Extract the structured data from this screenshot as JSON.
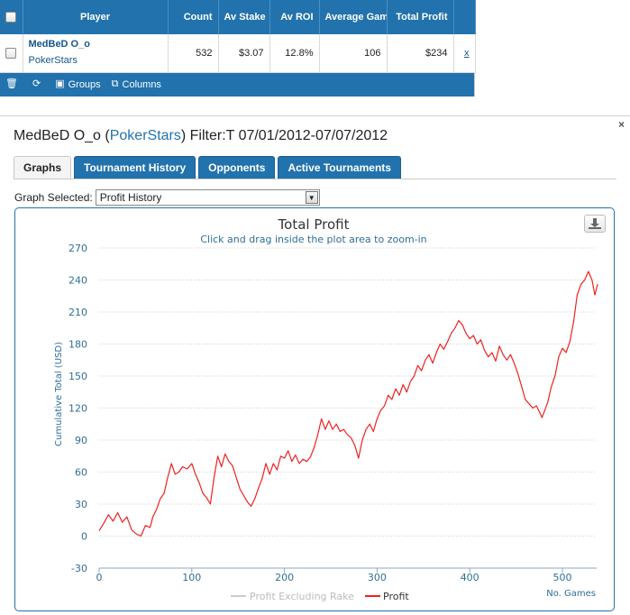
{
  "table": {
    "headers": {
      "player": "Player",
      "count": "Count",
      "av_stake": "Av Stake",
      "av_roi": "Av ROI",
      "avg_games": "Average Gam",
      "total_profit": "Total Profit"
    },
    "rows": [
      {
        "player": "MedBeD O_o",
        "site": "PokerStars",
        "count": "532",
        "av_stake": "$3.07",
        "av_roi": "12.8%",
        "avg_games": "106",
        "total_profit": "$234",
        "remove": "x"
      }
    ],
    "toolbar": {
      "groups": "Groups",
      "columns": "Columns"
    }
  },
  "panel": {
    "player": "MedBeD O_o",
    "paren_open": " (",
    "site": "PokerStars",
    "filter": ") Filter:T 07/01/2012-07/07/2012",
    "tabs": [
      "Graphs",
      "Tournament History",
      "Opponents",
      "Active Tournaments"
    ],
    "active_tab": "Graphs",
    "graph_selected_label": "Graph Selected:",
    "graph_selected_value": "Profit History"
  },
  "chart_data": {
    "type": "line",
    "title": "Total Profit",
    "subtitle": "Click and drag inside the plot area to zoom-in",
    "ylabel": "Cumulative Total (USD)",
    "xlabel": "No. Games",
    "ylim": [
      -30,
      270
    ],
    "xlim": [
      0,
      532
    ],
    "yticks": [
      270,
      240,
      210,
      180,
      150,
      120,
      90,
      60,
      30,
      0,
      -30
    ],
    "xticks": [
      0,
      100,
      200,
      300,
      400,
      500
    ],
    "grid": "horizontal-dotted",
    "legend_position": "bottom-center",
    "series": [
      {
        "name": "Profit Excluding Rake",
        "color": "#cccccc",
        "visible": false,
        "values": []
      },
      {
        "name": "Profit",
        "color": "#ee2222",
        "visible": true,
        "points": [
          [
            0,
            5
          ],
          [
            5,
            12
          ],
          [
            10,
            20
          ],
          [
            15,
            14
          ],
          [
            20,
            22
          ],
          [
            25,
            13
          ],
          [
            30,
            18
          ],
          [
            35,
            6
          ],
          [
            40,
            2
          ],
          [
            45,
            0
          ],
          [
            50,
            10
          ],
          [
            55,
            8
          ],
          [
            58,
            18
          ],
          [
            62,
            25
          ],
          [
            66,
            35
          ],
          [
            70,
            40
          ],
          [
            74,
            55
          ],
          [
            78,
            68
          ],
          [
            82,
            58
          ],
          [
            86,
            60
          ],
          [
            90,
            65
          ],
          [
            95,
            63
          ],
          [
            100,
            68
          ],
          [
            104,
            58
          ],
          [
            108,
            50
          ],
          [
            112,
            40
          ],
          [
            116,
            36
          ],
          [
            120,
            30
          ],
          [
            124,
            55
          ],
          [
            128,
            75
          ],
          [
            132,
            65
          ],
          [
            136,
            77
          ],
          [
            140,
            70
          ],
          [
            144,
            66
          ],
          [
            148,
            55
          ],
          [
            152,
            44
          ],
          [
            156,
            38
          ],
          [
            160,
            32
          ],
          [
            164,
            28
          ],
          [
            168,
            35
          ],
          [
            172,
            45
          ],
          [
            176,
            54
          ],
          [
            180,
            68
          ],
          [
            184,
            58
          ],
          [
            188,
            68
          ],
          [
            192,
            62
          ],
          [
            196,
            75
          ],
          [
            200,
            73
          ],
          [
            204,
            80
          ],
          [
            208,
            70
          ],
          [
            212,
            76
          ],
          [
            216,
            68
          ],
          [
            220,
            72
          ],
          [
            224,
            70
          ],
          [
            228,
            74
          ],
          [
            232,
            83
          ],
          [
            236,
            95
          ],
          [
            240,
            110
          ],
          [
            244,
            100
          ],
          [
            248,
            108
          ],
          [
            252,
            100
          ],
          [
            256,
            105
          ],
          [
            260,
            98
          ],
          [
            264,
            100
          ],
          [
            268,
            95
          ],
          [
            272,
            92
          ],
          [
            276,
            85
          ],
          [
            280,
            73
          ],
          [
            284,
            90
          ],
          [
            288,
            100
          ],
          [
            292,
            105
          ],
          [
            296,
            98
          ],
          [
            300,
            110
          ],
          [
            304,
            118
          ],
          [
            308,
            122
          ],
          [
            312,
            132
          ],
          [
            316,
            128
          ],
          [
            320,
            138
          ],
          [
            324,
            132
          ],
          [
            328,
            142
          ],
          [
            332,
            135
          ],
          [
            336,
            145
          ],
          [
            340,
            150
          ],
          [
            344,
            160
          ],
          [
            348,
            155
          ],
          [
            352,
            165
          ],
          [
            356,
            170
          ],
          [
            360,
            162
          ],
          [
            364,
            172
          ],
          [
            368,
            180
          ],
          [
            372,
            175
          ],
          [
            376,
            182
          ],
          [
            380,
            190
          ],
          [
            384,
            195
          ],
          [
            388,
            202
          ],
          [
            392,
            198
          ],
          [
            396,
            190
          ],
          [
            400,
            185
          ],
          [
            404,
            188
          ],
          [
            408,
            180
          ],
          [
            412,
            184
          ],
          [
            416,
            174
          ],
          [
            420,
            168
          ],
          [
            424,
            172
          ],
          [
            428,
            164
          ],
          [
            432,
            178
          ],
          [
            436,
            170
          ],
          [
            440,
            165
          ],
          [
            444,
            170
          ],
          [
            448,
            162
          ],
          [
            452,
            152
          ],
          [
            456,
            140
          ],
          [
            460,
            128
          ],
          [
            464,
            124
          ],
          [
            468,
            120
          ],
          [
            472,
            122
          ],
          [
            476,
            115
          ],
          [
            478,
            111
          ],
          [
            481,
            118
          ],
          [
            484,
            125
          ],
          [
            488,
            140
          ],
          [
            492,
            150
          ],
          [
            496,
            168
          ],
          [
            500,
            176
          ],
          [
            504,
            172
          ],
          [
            508,
            182
          ],
          [
            512,
            200
          ],
          [
            516,
            226
          ],
          [
            520,
            236
          ],
          [
            524,
            240
          ],
          [
            528,
            248
          ],
          [
            532,
            240
          ],
          [
            535,
            226
          ],
          [
            538,
            236
          ]
        ]
      }
    ]
  }
}
